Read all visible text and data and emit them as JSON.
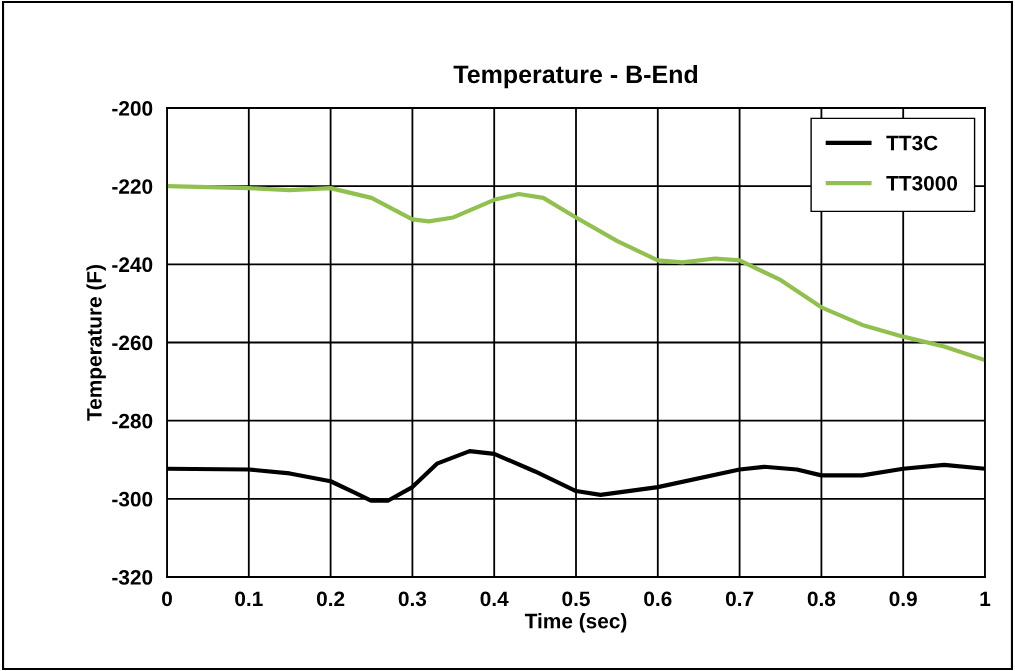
{
  "chart_data": {
    "type": "line",
    "title": "Temperature - B-End",
    "xlabel": "Time (sec)",
    "ylabel": "Temperature (F)",
    "xlim": [
      0,
      1
    ],
    "xticks": [
      0,
      0.1,
      0.2,
      0.3,
      0.4,
      0.5,
      0.6,
      0.7,
      0.8,
      0.9,
      1
    ],
    "ylim": [
      -320,
      -200
    ],
    "yticks": [
      -320,
      -300,
      -280,
      -260,
      -240,
      -220,
      -200
    ],
    "grid": true,
    "legend": "top right",
    "marker": "none",
    "line_style": "solid",
    "series": [
      {
        "name": "TT3C",
        "color": "#000000",
        "x": [
          0,
          0.1,
          0.15,
          0.2,
          0.23,
          0.25,
          0.27,
          0.3,
          0.33,
          0.37,
          0.4,
          0.45,
          0.5,
          0.53,
          0.6,
          0.7,
          0.73,
          0.77,
          0.8,
          0.85,
          0.9,
          0.95,
          1.0
        ],
        "values": [
          -292.3,
          -292.5,
          -293.5,
          -295.5,
          -298.5,
          -300.5,
          -300.5,
          -297,
          -291,
          -287.8,
          -288.5,
          -293,
          -298,
          -299,
          -297,
          -292.5,
          -291.8,
          -292.5,
          -294,
          -294,
          -292.3,
          -291.3,
          -292.3
        ]
      },
      {
        "name": "TT3000",
        "color": "#92c050",
        "x": [
          0,
          0.1,
          0.15,
          0.2,
          0.25,
          0.3,
          0.32,
          0.35,
          0.4,
          0.43,
          0.46,
          0.5,
          0.55,
          0.6,
          0.63,
          0.67,
          0.7,
          0.75,
          0.8,
          0.85,
          0.9,
          0.95,
          1.0
        ],
        "values": [
          -220,
          -220.5,
          -221,
          -220.5,
          -223,
          -228.5,
          -229,
          -228,
          -223.5,
          -222,
          -223,
          -228,
          -234,
          -239,
          -239.5,
          -238.5,
          -239,
          -244,
          -251,
          -255.5,
          -258.5,
          -261,
          -264.5
        ]
      }
    ]
  }
}
